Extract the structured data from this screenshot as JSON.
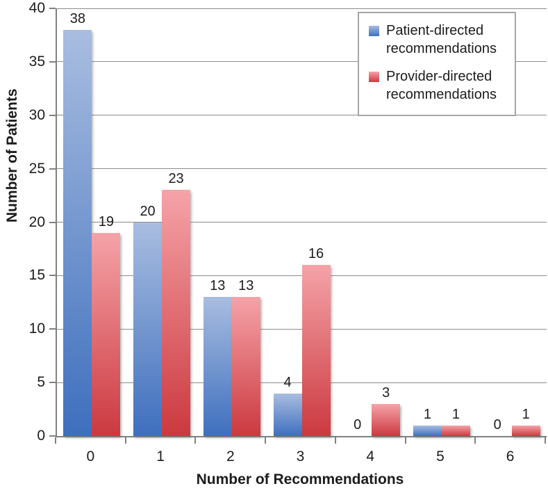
{
  "chart_data": {
    "type": "bar",
    "title": "",
    "xlabel": "Number of Recommendations",
    "ylabel": "Number of Patients",
    "categories": [
      "0",
      "1",
      "2",
      "3",
      "4",
      "5",
      "6"
    ],
    "series": [
      {
        "name": "Patient-directed recommendations",
        "values": [
          38,
          20,
          13,
          4,
          0,
          1,
          0
        ]
      },
      {
        "name": "Provider-directed recommendations",
        "values": [
          19,
          23,
          13,
          16,
          3,
          1,
          1
        ]
      }
    ],
    "ylim": [
      0,
      40
    ],
    "ytick_step": 5,
    "grid": true,
    "legend_position": "top-right",
    "data_labels_shown": true,
    "style": {
      "blue_top": "#a9bde0",
      "blue_bottom": "#3e6fbe",
      "red_top": "#f5a3a8",
      "red_bottom": "#cb393f",
      "grid_color": "#8c8c8c",
      "axis_color": "#808080",
      "text_color": "#1c1c1c",
      "legend_border": "#a6a6a6"
    }
  }
}
